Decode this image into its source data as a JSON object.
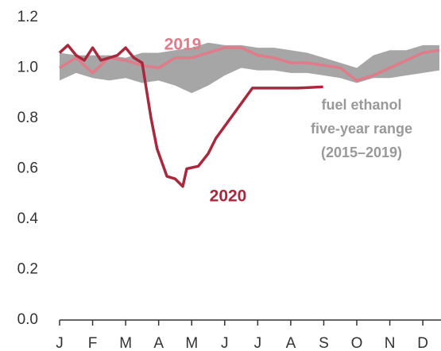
{
  "chart_data": {
    "type": "line",
    "xlim": [
      0,
      11.55
    ],
    "xticks": [
      {
        "value": 0,
        "label": "J"
      },
      {
        "value": 1,
        "label": "F"
      },
      {
        "value": 2,
        "label": "M"
      },
      {
        "value": 3,
        "label": "A"
      },
      {
        "value": 4,
        "label": "M"
      },
      {
        "value": 5,
        "label": "J"
      },
      {
        "value": 6,
        "label": "J"
      },
      {
        "value": 7,
        "label": "A"
      },
      {
        "value": 8,
        "label": "S"
      },
      {
        "value": 9,
        "label": "O"
      },
      {
        "value": 10,
        "label": "N"
      },
      {
        "value": 11,
        "label": "D"
      }
    ],
    "ylim": [
      0,
      1.2
    ],
    "yticks": [
      {
        "value": 0,
        "label": "0.0"
      },
      0.2,
      0.4,
      0.6,
      0.8,
      {
        "value": 1,
        "label": "1.0"
      },
      1.2
    ],
    "range": {
      "color": "#a6a6a6",
      "x": [
        0,
        0.5,
        1,
        1.5,
        2,
        2.5,
        3,
        3.5,
        4,
        4.5,
        5,
        5.5,
        6,
        6.5,
        7,
        7.5,
        8,
        8.5,
        9,
        9.5,
        10,
        10.5,
        11,
        11.5
      ],
      "upper": [
        1.06,
        1.05,
        1.05,
        1.05,
        1.04,
        1.06,
        1.06,
        1.07,
        1.08,
        1.1,
        1.09,
        1.09,
        1.08,
        1.08,
        1.07,
        1.06,
        1.04,
        1.02,
        1.0,
        1.05,
        1.07,
        1.07,
        1.09,
        1.09
      ],
      "lower": [
        0.95,
        0.98,
        0.96,
        0.95,
        0.96,
        0.94,
        0.95,
        0.93,
        0.9,
        0.93,
        0.97,
        1.0,
        0.99,
        0.99,
        0.98,
        0.98,
        0.97,
        0.96,
        0.94,
        0.96,
        0.96,
        0.97,
        0.98,
        0.99
      ]
    },
    "range_label": [
      "fuel ethanol",
      "five-year range",
      "(2015–2019)"
    ],
    "series": [
      {
        "name": "2019",
        "color": "#e07b8a",
        "x": [
          0,
          0.5,
          1,
          1.5,
          2,
          2.5,
          3,
          3.5,
          4,
          4.5,
          5,
          5.5,
          6,
          6.5,
          7,
          7.5,
          8,
          8.5,
          9,
          9.5,
          10,
          10.5,
          11,
          11.5
        ],
        "values": [
          1.0,
          1.04,
          0.98,
          1.04,
          1.03,
          1.01,
          1.0,
          1.04,
          1.04,
          1.06,
          1.08,
          1.08,
          1.05,
          1.04,
          1.02,
          1.02,
          1.01,
          1.0,
          0.95,
          0.97,
          1.0,
          1.03,
          1.06,
          1.07
        ]
      },
      {
        "name": "2020",
        "color": "#a8283d",
        "x": [
          0,
          0.25,
          0.5,
          0.75,
          1,
          1.25,
          1.5,
          1.75,
          2,
          2.25,
          2.5,
          2.77,
          2.95,
          3.25,
          3.5,
          3.73,
          3.85,
          4.2,
          4.5,
          4.73,
          5.84,
          6.5,
          7.2,
          7.98
        ],
        "values": [
          1.06,
          1.09,
          1.05,
          1.03,
          1.08,
          1.03,
          1.04,
          1.05,
          1.08,
          1.04,
          1.02,
          0.8,
          0.68,
          0.57,
          0.56,
          0.53,
          0.6,
          0.61,
          0.66,
          0.72,
          0.92,
          0.92,
          0.92,
          0.925
        ]
      }
    ]
  }
}
